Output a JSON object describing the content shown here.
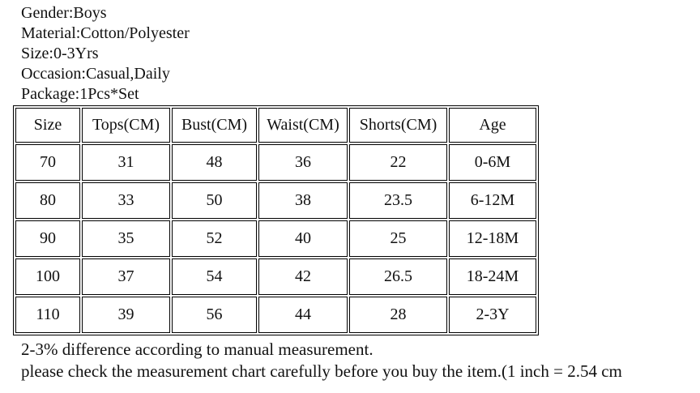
{
  "product_info": {
    "lines": [
      "Gender:Boys",
      "Material:Cotton/Polyester",
      "Size:0-3Yrs",
      "Occasion:Casual,Daily",
      "Package:1Pcs*Set"
    ]
  },
  "size_chart": {
    "columns": [
      "Size",
      "Tops(CM)",
      "Bust(CM)",
      "Waist(CM)",
      "Shorts(CM)",
      "Age"
    ],
    "rows": [
      [
        "70",
        "31",
        "48",
        "36",
        "22",
        "0-6M"
      ],
      [
        "80",
        "33",
        "50",
        "38",
        "23.5",
        "6-12M"
      ],
      [
        "90",
        "35",
        "52",
        "40",
        "25",
        "12-18M"
      ],
      [
        "100",
        "37",
        "54",
        "42",
        "26.5",
        "18-24M"
      ],
      [
        "110",
        "39",
        "56",
        "44",
        "28",
        "2-3Y"
      ]
    ]
  },
  "notes": {
    "lines": [
      "2-3% difference according to manual measurement.",
      "please check the measurement chart carefully before you buy the item.(1 inch = 2.54 cm"
    ]
  },
  "colors": {
    "text": "#111111",
    "border": "#000000",
    "background": "#ffffff"
  }
}
